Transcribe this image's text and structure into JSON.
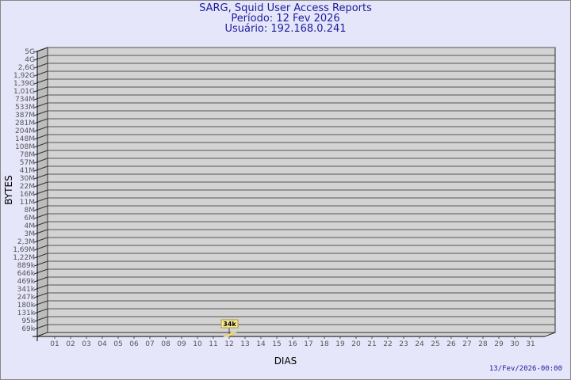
{
  "chart_data": {
    "type": "bar",
    "title": "SARG, Squid User Access Reports",
    "subtitle": [
      "Período: 12 Fev 2026",
      "Usuário: 192.168.0.241"
    ],
    "xlabel": "DIAS",
    "ylabel": "BYTES",
    "yscale": "log",
    "grid": true,
    "y_tick_labels": [
      "5G",
      "4G",
      "2,6G",
      "1,92G",
      "1,39G",
      "1,01G",
      "734M",
      "533M",
      "387M",
      "281M",
      "204M",
      "148M",
      "108M",
      "78M",
      "57M",
      "41M",
      "30M",
      "22M",
      "16M",
      "11M",
      "8M",
      "6M",
      "4M",
      "3M",
      "2,3M",
      "1,69M",
      "1,22M",
      "889k",
      "646k",
      "469k",
      "341k",
      "247k",
      "180k",
      "131k",
      "95k",
      "69k"
    ],
    "categories": [
      "01",
      "02",
      "03",
      "04",
      "05",
      "06",
      "07",
      "08",
      "09",
      "10",
      "11",
      "12",
      "13",
      "14",
      "15",
      "16",
      "17",
      "18",
      "19",
      "20",
      "21",
      "22",
      "23",
      "24",
      "25",
      "26",
      "27",
      "28",
      "29",
      "30",
      "31"
    ],
    "bars": [
      {
        "category": "12",
        "value": 34000,
        "label": "34k"
      }
    ],
    "colors": {
      "bar": "#f5e08a",
      "wall": "#d3d3d3",
      "side": "#bdbdbd",
      "title": "#1c1c9c"
    }
  },
  "footer": "13/Fev/2026-00:00"
}
